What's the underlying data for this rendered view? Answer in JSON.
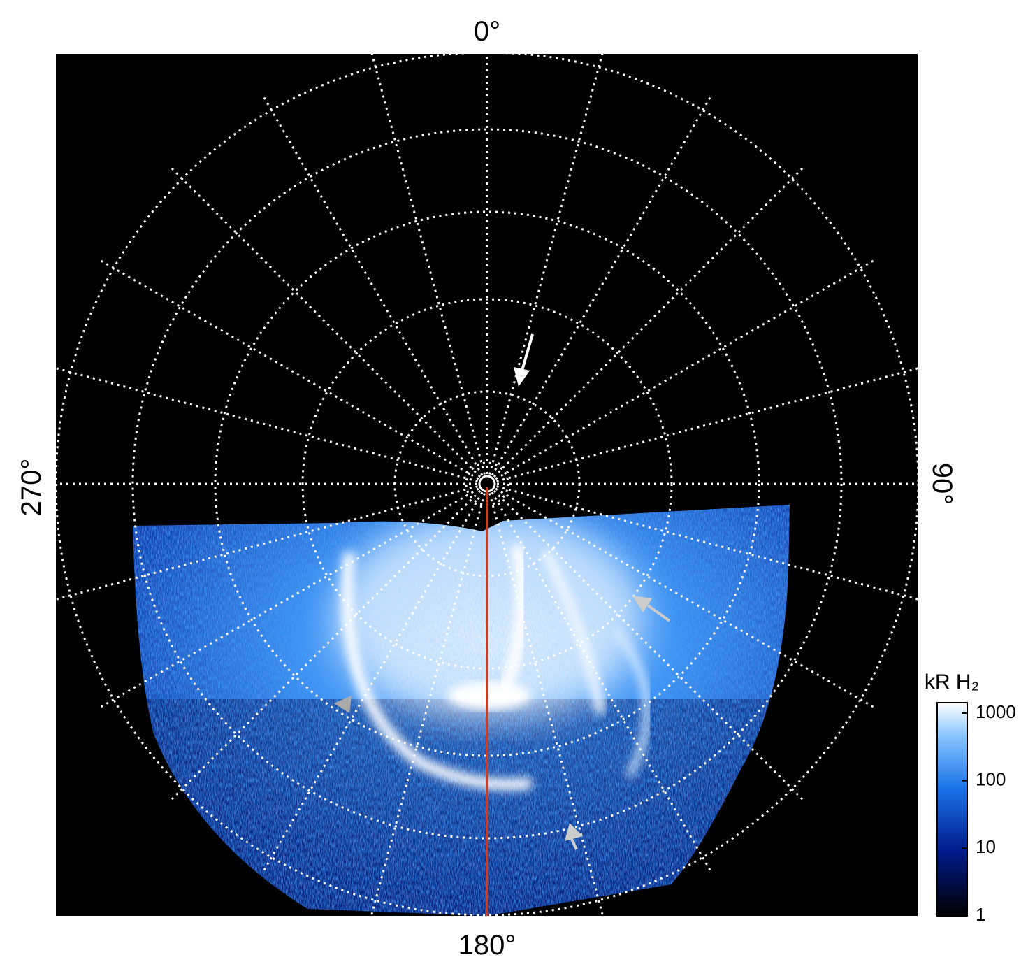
{
  "chart_data": {
    "type": "polar-image",
    "angle_labels": {
      "top": "0°",
      "bottom": "180°",
      "left": "270°",
      "right": "90°"
    },
    "colorbar": {
      "label": "kR H₂",
      "scale": "log",
      "ylim": [
        1,
        1430
      ],
      "yticks": [
        1,
        10,
        100,
        1000
      ]
    }
  }
}
